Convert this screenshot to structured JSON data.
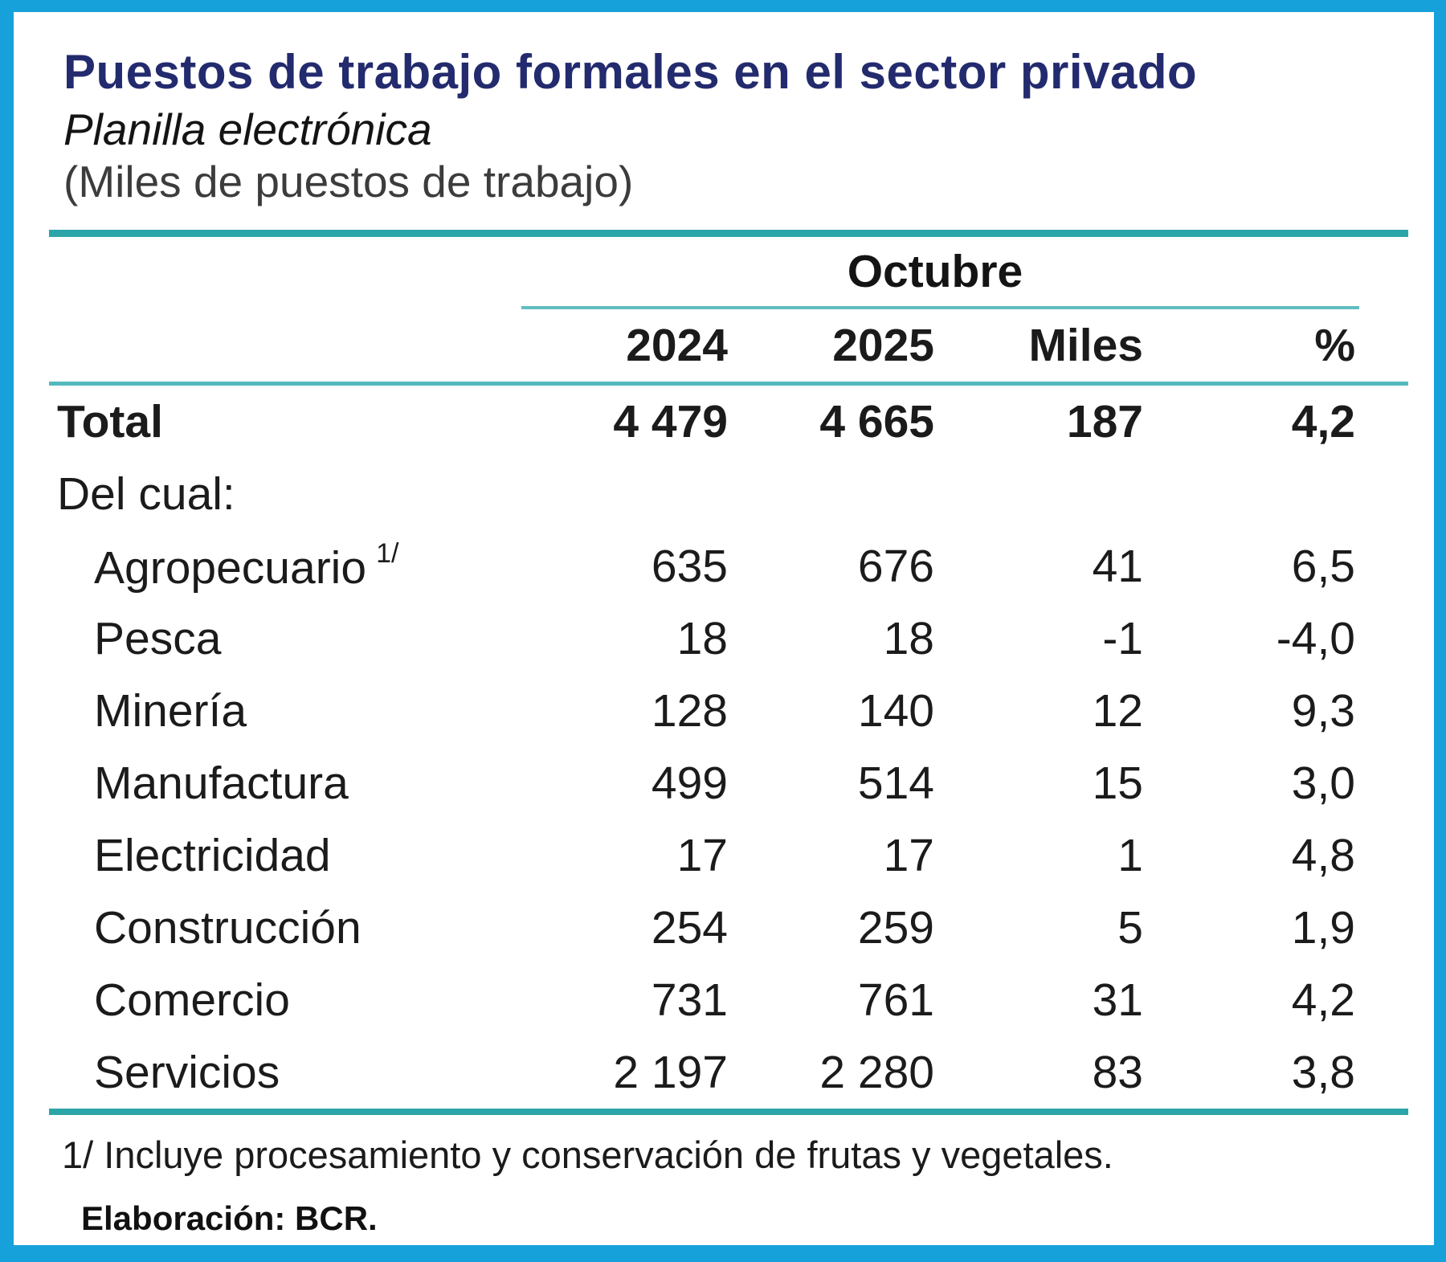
{
  "colors": {
    "frame_blue": "#16A1DB",
    "rule_teal_dark": "#2CA5A8",
    "rule_teal_light": "#5FBEC2",
    "title_navy": "#232b6e"
  },
  "header": {
    "title": "Puestos de trabajo formales en el sector privado",
    "subtitle": "Planilla electrónica",
    "units": "(Miles de puestos de trabajo)"
  },
  "table": {
    "group_header": "Octubre",
    "columns": [
      "2024",
      "2025",
      "Miles",
      "%"
    ],
    "total": {
      "label": "Total",
      "values": [
        "4 479",
        "4 665",
        "187",
        "4,2"
      ]
    },
    "section_label": "Del cual:",
    "rows": [
      {
        "label": "Agropecuario",
        "marker": "1/",
        "values": [
          "635",
          "676",
          "41",
          "6,5"
        ]
      },
      {
        "label": "Pesca",
        "values": [
          "18",
          "18",
          "-1",
          "-4,0"
        ]
      },
      {
        "label": "Minería",
        "values": [
          "128",
          "140",
          "12",
          "9,3"
        ]
      },
      {
        "label": "Manufactura",
        "values": [
          "499",
          "514",
          "15",
          "3,0"
        ]
      },
      {
        "label": "Electricidad",
        "values": [
          "17",
          "17",
          "1",
          "4,8"
        ]
      },
      {
        "label": "Construcción",
        "values": [
          "254",
          "259",
          "5",
          "1,9"
        ]
      },
      {
        "label": "Comercio",
        "values": [
          "731",
          "761",
          "31",
          "4,2"
        ]
      },
      {
        "label": "Servicios",
        "values": [
          "2 197",
          "2 280",
          "83",
          "3,8"
        ]
      }
    ]
  },
  "footer": {
    "footnote": "1/ Incluye procesamiento y conservación de frutas y vegetales.",
    "source": "Elaboración: BCR."
  },
  "chart_data": {
    "type": "table",
    "title": "Puestos de trabajo formales en el sector privado",
    "subtitle": "Planilla electrónica",
    "units": "Miles de puestos de trabajo",
    "column_group": "Octubre",
    "columns": [
      "2024",
      "2025",
      "Miles",
      "%"
    ],
    "rows": [
      {
        "label": "Total",
        "oct_2024": 4479,
        "oct_2025": 4665,
        "var_miles": 187,
        "var_pct": 4.2
      },
      {
        "label": "Agropecuario",
        "oct_2024": 635,
        "oct_2025": 676,
        "var_miles": 41,
        "var_pct": 6.5
      },
      {
        "label": "Pesca",
        "oct_2024": 18,
        "oct_2025": 18,
        "var_miles": -1,
        "var_pct": -4.0
      },
      {
        "label": "Minería",
        "oct_2024": 128,
        "oct_2025": 140,
        "var_miles": 12,
        "var_pct": 9.3
      },
      {
        "label": "Manufactura",
        "oct_2024": 499,
        "oct_2025": 514,
        "var_miles": 15,
        "var_pct": 3.0
      },
      {
        "label": "Electricidad",
        "oct_2024": 17,
        "oct_2025": 17,
        "var_miles": 1,
        "var_pct": 4.8
      },
      {
        "label": "Construcción",
        "oct_2024": 254,
        "oct_2025": 259,
        "var_miles": 5,
        "var_pct": 1.9
      },
      {
        "label": "Comercio",
        "oct_2024": 731,
        "oct_2025": 761,
        "var_miles": 31,
        "var_pct": 4.2
      },
      {
        "label": "Servicios",
        "oct_2024": 2197,
        "oct_2025": 2280,
        "var_miles": 83,
        "var_pct": 3.8
      }
    ],
    "footnote": "1/ Incluye procesamiento y conservación de frutas y vegetales.",
    "source": "Elaboración: BCR."
  }
}
